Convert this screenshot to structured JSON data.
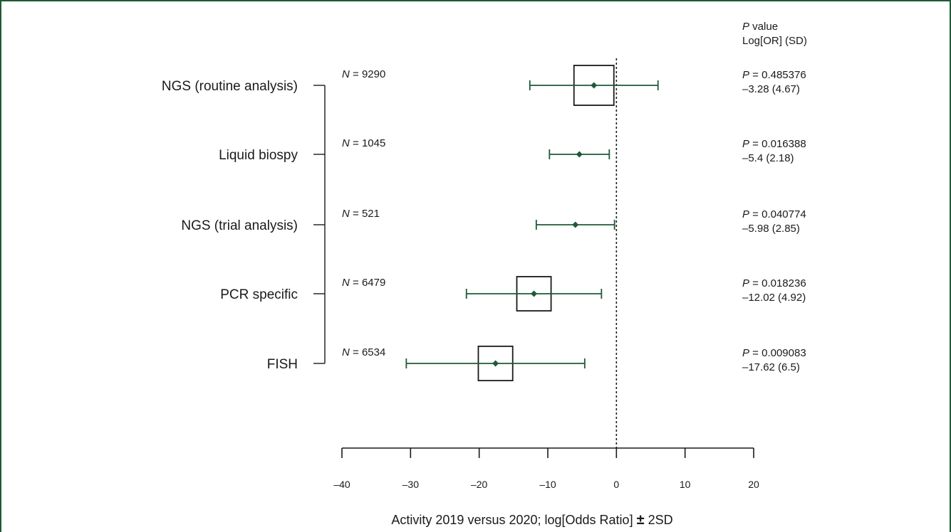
{
  "chart_data": {
    "type": "forest",
    "xlabel_main": "Activity 2019 versus 2020; log[Odds Ratio] ",
    "xlabel_pm": "±",
    "xlabel_tail": " 2SD",
    "xlim": [
      -40,
      20
    ],
    "xticks": [
      -40,
      -30,
      -20,
      -10,
      0,
      10,
      20
    ],
    "xtick_labels": [
      "–40",
      "–30",
      "–20",
      "–10",
      "0",
      "10",
      "20"
    ],
    "reference_line": 0,
    "right_header": {
      "p_italic": "P",
      "p_rest": " value",
      "line2": "Log[OR] (SD)"
    },
    "rows": [
      {
        "label": "NGS (routine analysis)",
        "n_text": "9290",
        "estimate": -3.28,
        "lower": -12.62,
        "upper": 6.06,
        "p_text": "0.485376",
        "stat_text": "–3.28 (4.67)",
        "box_weight": 9290
      },
      {
        "label": "Liquid biospy",
        "n_text": "1045",
        "estimate": -5.4,
        "lower": -9.76,
        "upper": -1.04,
        "p_text": "0.016388",
        "stat_text": "–5.4 (2.18)",
        "box_weight": 1045
      },
      {
        "label": "NGS (trial analysis)",
        "n_text": "521",
        "estimate": -5.98,
        "lower": -11.68,
        "upper": -0.28,
        "p_text": "0.040774",
        "stat_text": "–5.98 (2.85)",
        "box_weight": 521
      },
      {
        "label": "PCR specific",
        "n_text": "6479",
        "estimate": -12.02,
        "lower": -21.86,
        "upper": -2.18,
        "p_text": "0.018236",
        "stat_text": "–12.02 (4.92)",
        "box_weight": 6479
      },
      {
        "label": "FISH",
        "n_text": "6534",
        "estimate": -17.62,
        "lower": -30.62,
        "upper": -4.62,
        "p_text": "0.009083",
        "stat_text": "–17.62 (6.5)",
        "box_weight": 6534
      }
    ],
    "n_prefix_italic": "N",
    "n_eq": " = ",
    "p_prefix_italic": "P",
    "p_eq": " = ",
    "colors": {
      "whisker": "#1e5a37",
      "point": "#1e5a37",
      "box": "#1a1a1a",
      "frame": "#1e5a37"
    }
  }
}
